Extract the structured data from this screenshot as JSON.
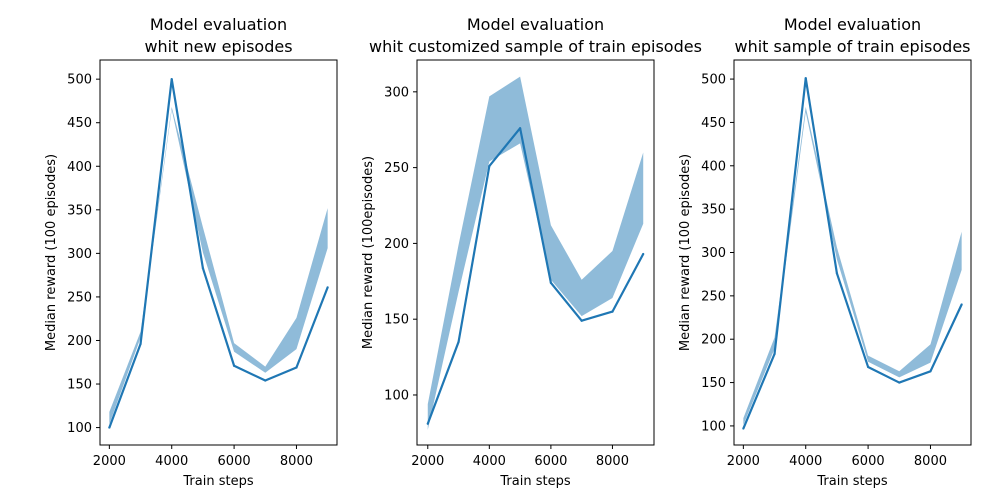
{
  "colors": {
    "line": "#1f77b4",
    "band": "#1f77b4",
    "band_opacity": 0.5
  },
  "chart_data": [
    {
      "type": "line",
      "title_lines": [
        "Model evaluation",
        "whit new episodes"
      ],
      "xlabel": "Train steps",
      "ylabel": "Median reward (100 episodes)",
      "xlim": [
        1700,
        9300
      ],
      "ylim": [
        80,
        522
      ],
      "xticks": [
        2000,
        4000,
        6000,
        8000
      ],
      "yticks": [
        100,
        150,
        200,
        250,
        300,
        350,
        400,
        450,
        500
      ],
      "x": [
        2000,
        3000,
        4000,
        5000,
        6000,
        7000,
        8000,
        9000
      ],
      "series": [
        {
          "values": [
            100,
            196,
            500,
            283,
            171,
            154,
            169,
            261
          ]
        }
      ],
      "band": {
        "lower": [
          104,
          203,
          465,
          301,
          187,
          163,
          190,
          306
        ],
        "upper": [
          118,
          210,
          468,
          330,
          197,
          170,
          226,
          352
        ]
      }
    },
    {
      "type": "line",
      "title_lines": [
        "Model evaluation",
        "whit customized sample of train episodes"
      ],
      "xlabel": "Train steps",
      "ylabel": "Median reward (100episodes)",
      "xlim": [
        1650,
        9350
      ],
      "ylim": [
        67,
        321
      ],
      "xticks": [
        2000,
        4000,
        6000,
        8000
      ],
      "yticks": [
        100,
        150,
        200,
        250,
        300
      ],
      "x": [
        2000,
        3000,
        4000,
        5000,
        6000,
        7000,
        8000,
        9000
      ],
      "series": [
        {
          "values": [
            81,
            135,
            251,
            276,
            174,
            149,
            155,
            193
          ]
        }
      ],
      "band": {
        "lower": [
          77,
          168,
          254,
          266,
          176,
          152,
          164,
          213
        ],
        "upper": [
          94,
          199,
          297,
          310,
          212,
          176,
          195,
          260
        ]
      }
    },
    {
      "type": "line",
      "title_lines": [
        "Model evaluation",
        "whit sample of train episodes"
      ],
      "xlabel": "Train steps",
      "ylabel": "Median reward (100 episodes)",
      "xlim": [
        1700,
        9300
      ],
      "ylim": [
        78,
        522
      ],
      "xticks": [
        2000,
        4000,
        6000,
        8000
      ],
      "yticks": [
        100,
        150,
        200,
        250,
        300,
        350,
        400,
        450,
        500
      ],
      "x": [
        2000,
        3000,
        4000,
        5000,
        6000,
        7000,
        8000,
        9000
      ],
      "series": [
        {
          "values": [
            97,
            183,
            501,
            276,
            168,
            150,
            163,
            240
          ]
        }
      ],
      "band": {
        "lower": [
          101,
          189,
          462,
          292,
          174,
          156,
          173,
          280
        ],
        "upper": [
          109,
          202,
          468,
          306,
          181,
          163,
          194,
          324
        ]
      }
    }
  ]
}
